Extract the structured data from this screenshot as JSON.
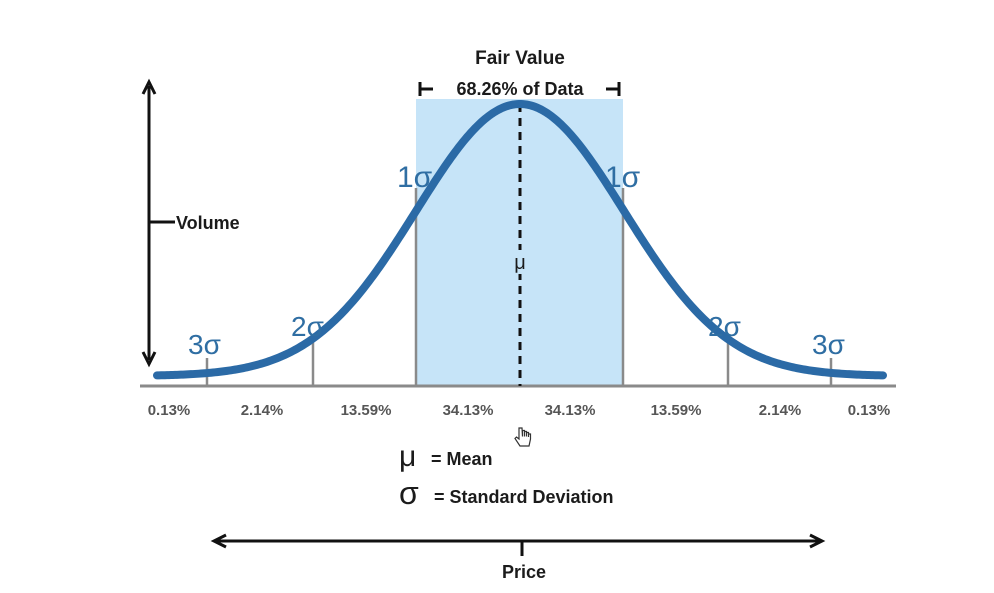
{
  "top": {
    "title": "Fair Value",
    "range_label": "68.26% of Data"
  },
  "axes": {
    "y_label": "Volume",
    "x_label": "Price"
  },
  "mean_symbol": "μ",
  "sigma_labels": {
    "left_1": "1σ",
    "right_1": "1σ",
    "left_2": "2σ",
    "right_2": "2σ",
    "left_3": "3σ",
    "right_3": "3σ"
  },
  "percentages": [
    "0.13%",
    "2.14%",
    "13.59%",
    "34.13%",
    "34.13%",
    "13.59%",
    "2.14%",
    "0.13%"
  ],
  "legend": {
    "mean_symbol": "μ",
    "mean_text": "= Mean",
    "sd_symbol": "σ",
    "sd_text": "= Standard Deviation"
  },
  "colors": {
    "curve": "#2b6aa6",
    "fill": "#c6e4f8",
    "sigma_text": "#2f6ea3",
    "marker": "#8a8a8a"
  }
}
